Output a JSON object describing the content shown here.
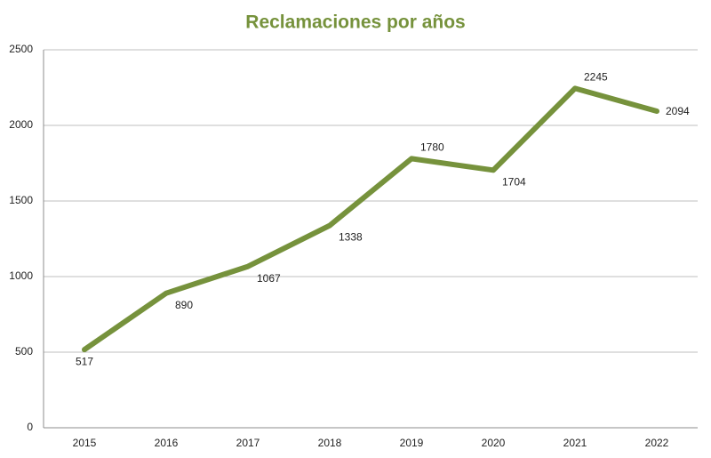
{
  "chart_data": {
    "type": "line",
    "title": "Reclamaciones por años",
    "categories": [
      "2015",
      "2016",
      "2017",
      "2018",
      "2019",
      "2020",
      "2021",
      "2022"
    ],
    "series": [
      {
        "name": "Reclamaciones",
        "color": "#76923c",
        "values": [
          517,
          890,
          1067,
          1338,
          1780,
          1704,
          2245,
          2094
        ]
      }
    ],
    "ylim": [
      0,
      2500
    ],
    "yticks": [
      0,
      500,
      1000,
      1500,
      2000,
      2500
    ],
    "grid": true,
    "title_color": "#76923c"
  }
}
